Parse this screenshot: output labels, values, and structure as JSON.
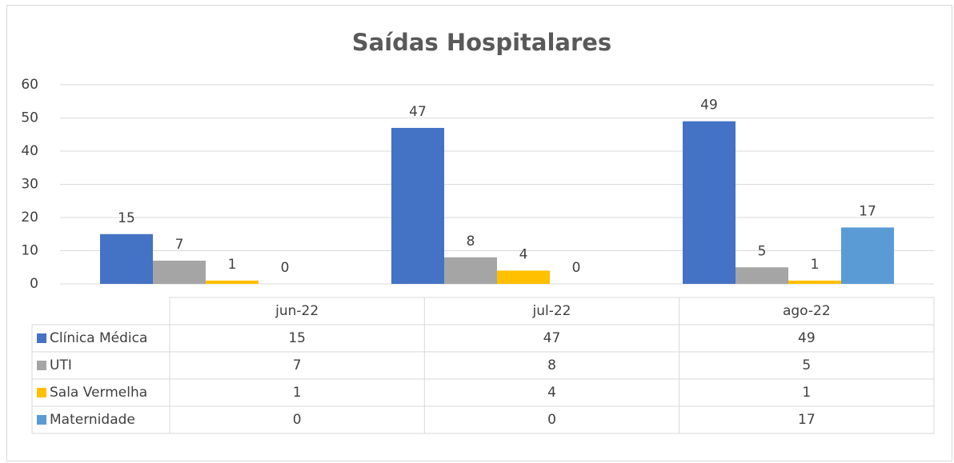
{
  "chart_data": {
    "type": "bar",
    "title": "Saídas Hospitalares",
    "categories": [
      "jun-22",
      "jul-22",
      "ago-22"
    ],
    "series": [
      {
        "name": "Clínica Médica",
        "color": "#4472c4",
        "values": [
          15,
          47,
          49
        ]
      },
      {
        "name": "UTI",
        "color": "#a5a5a5",
        "values": [
          7,
          8,
          5
        ]
      },
      {
        "name": "Sala Vermelha",
        "color": "#ffc000",
        "values": [
          1,
          4,
          1
        ]
      },
      {
        "name": "Maternidade",
        "color": "#5b9bd5",
        "values": [
          0,
          0,
          17
        ]
      }
    ],
    "ylim": [
      0,
      60
    ],
    "yticks": [
      0,
      10,
      20,
      30,
      40,
      50,
      60
    ],
    "grid": true,
    "data_table": true
  }
}
